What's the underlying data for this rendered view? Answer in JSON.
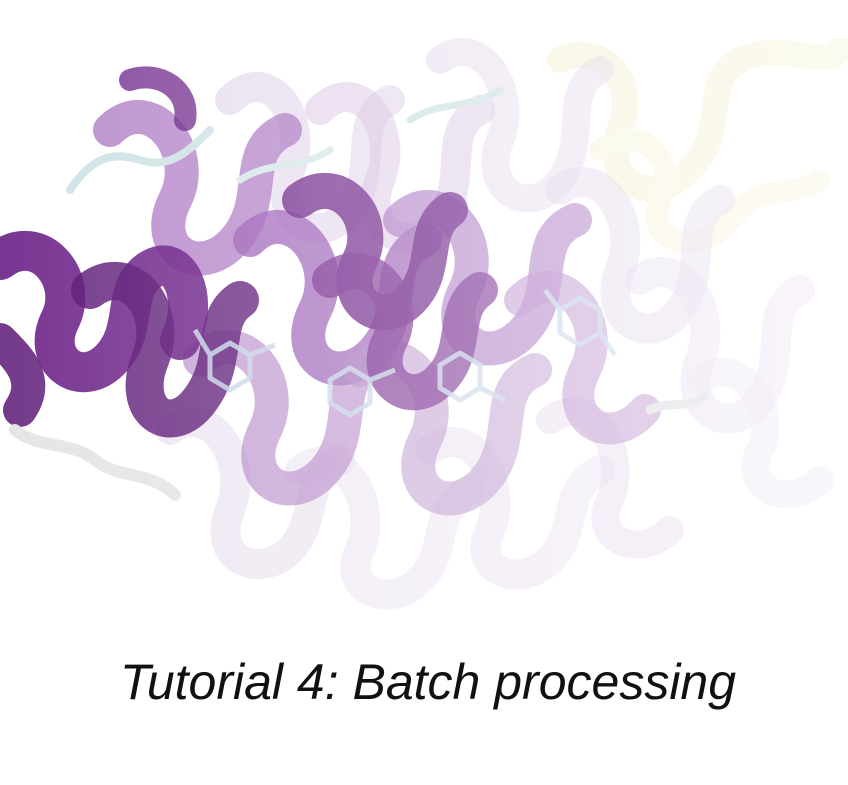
{
  "caption": "Tutorial 4: Batch processing",
  "colors": {
    "helix_dark": "#6a1f86",
    "helix_mid": "#9a5bb5",
    "helix_light": "#d9c6e3",
    "coil": "#cfe3e6",
    "ligand": "#c9d6e8",
    "yellow_helix": "#efe7b4",
    "background": "#ffffff",
    "text": "#111111"
  },
  "icons": [
    "protein-helix-ribbon",
    "ligand-stick-model"
  ]
}
